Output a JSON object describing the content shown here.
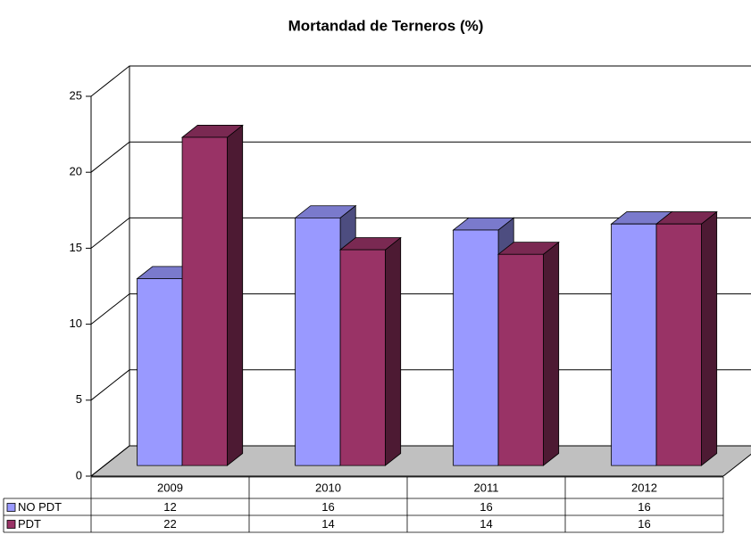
{
  "chart_data": {
    "type": "bar3d",
    "title": "Mortandad de Terneros (%)",
    "categories": [
      "2009",
      "2010",
      "2011",
      "2012"
    ],
    "series": [
      {
        "name": "NO PDT",
        "color": "#9999ff",
        "values": [
          12.3,
          16.3,
          15.5,
          15.9
        ],
        "value_labels": [
          "12",
          "16",
          "16",
          "16"
        ]
      },
      {
        "name": "PDT",
        "color": "#993366",
        "values": [
          21.6,
          14.2,
          13.9,
          15.9
        ],
        "value_labels": [
          "22",
          "14",
          "14",
          "16"
        ]
      }
    ],
    "ylim": [
      0,
      25
    ],
    "yticks": [
      0,
      5,
      10,
      15,
      20,
      25
    ],
    "grid": true,
    "data_table": true
  }
}
